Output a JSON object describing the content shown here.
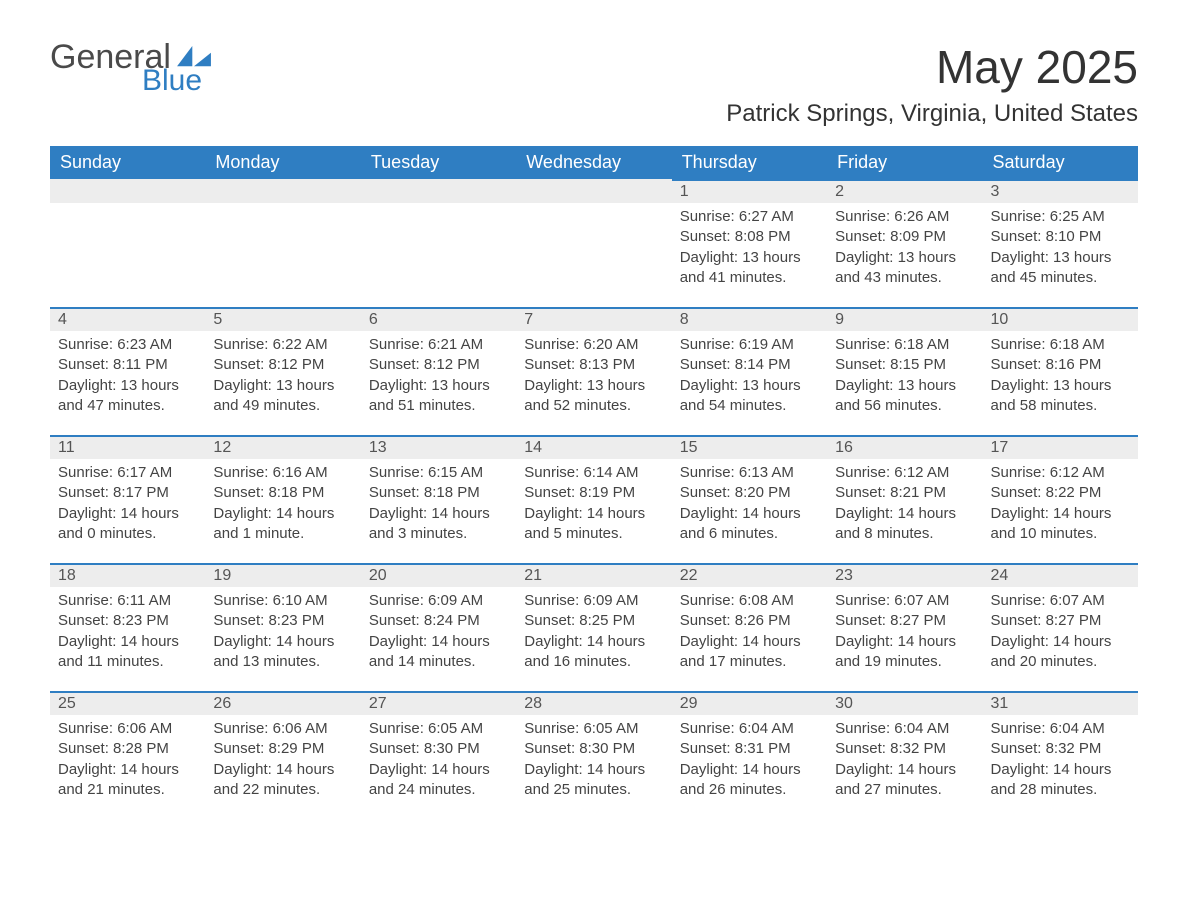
{
  "brand": {
    "word1": "General",
    "word2": "Blue",
    "logo_color": "#2f7ec2"
  },
  "title": "May 2025",
  "subtitle": "Patrick Springs, Virginia, United States",
  "header_bg": "#2f7ec2",
  "header_fg": "#ffffff",
  "daynum_bg": "#ededed",
  "row_accent": "#2f7ec2",
  "text_color": "#444444",
  "weekdays": [
    "Sunday",
    "Monday",
    "Tuesday",
    "Wednesday",
    "Thursday",
    "Friday",
    "Saturday"
  ],
  "weeks": [
    [
      null,
      null,
      null,
      null,
      {
        "n": "1",
        "sr": "6:27 AM",
        "ss": "8:08 PM",
        "dl": "13 hours and 41 minutes."
      },
      {
        "n": "2",
        "sr": "6:26 AM",
        "ss": "8:09 PM",
        "dl": "13 hours and 43 minutes."
      },
      {
        "n": "3",
        "sr": "6:25 AM",
        "ss": "8:10 PM",
        "dl": "13 hours and 45 minutes."
      }
    ],
    [
      {
        "n": "4",
        "sr": "6:23 AM",
        "ss": "8:11 PM",
        "dl": "13 hours and 47 minutes."
      },
      {
        "n": "5",
        "sr": "6:22 AM",
        "ss": "8:12 PM",
        "dl": "13 hours and 49 minutes."
      },
      {
        "n": "6",
        "sr": "6:21 AM",
        "ss": "8:12 PM",
        "dl": "13 hours and 51 minutes."
      },
      {
        "n": "7",
        "sr": "6:20 AM",
        "ss": "8:13 PM",
        "dl": "13 hours and 52 minutes."
      },
      {
        "n": "8",
        "sr": "6:19 AM",
        "ss": "8:14 PM",
        "dl": "13 hours and 54 minutes."
      },
      {
        "n": "9",
        "sr": "6:18 AM",
        "ss": "8:15 PM",
        "dl": "13 hours and 56 minutes."
      },
      {
        "n": "10",
        "sr": "6:18 AM",
        "ss": "8:16 PM",
        "dl": "13 hours and 58 minutes."
      }
    ],
    [
      {
        "n": "11",
        "sr": "6:17 AM",
        "ss": "8:17 PM",
        "dl": "14 hours and 0 minutes."
      },
      {
        "n": "12",
        "sr": "6:16 AM",
        "ss": "8:18 PM",
        "dl": "14 hours and 1 minute."
      },
      {
        "n": "13",
        "sr": "6:15 AM",
        "ss": "8:18 PM",
        "dl": "14 hours and 3 minutes."
      },
      {
        "n": "14",
        "sr": "6:14 AM",
        "ss": "8:19 PM",
        "dl": "14 hours and 5 minutes."
      },
      {
        "n": "15",
        "sr": "6:13 AM",
        "ss": "8:20 PM",
        "dl": "14 hours and 6 minutes."
      },
      {
        "n": "16",
        "sr": "6:12 AM",
        "ss": "8:21 PM",
        "dl": "14 hours and 8 minutes."
      },
      {
        "n": "17",
        "sr": "6:12 AM",
        "ss": "8:22 PM",
        "dl": "14 hours and 10 minutes."
      }
    ],
    [
      {
        "n": "18",
        "sr": "6:11 AM",
        "ss": "8:23 PM",
        "dl": "14 hours and 11 minutes."
      },
      {
        "n": "19",
        "sr": "6:10 AM",
        "ss": "8:23 PM",
        "dl": "14 hours and 13 minutes."
      },
      {
        "n": "20",
        "sr": "6:09 AM",
        "ss": "8:24 PM",
        "dl": "14 hours and 14 minutes."
      },
      {
        "n": "21",
        "sr": "6:09 AM",
        "ss": "8:25 PM",
        "dl": "14 hours and 16 minutes."
      },
      {
        "n": "22",
        "sr": "6:08 AM",
        "ss": "8:26 PM",
        "dl": "14 hours and 17 minutes."
      },
      {
        "n": "23",
        "sr": "6:07 AM",
        "ss": "8:27 PM",
        "dl": "14 hours and 19 minutes."
      },
      {
        "n": "24",
        "sr": "6:07 AM",
        "ss": "8:27 PM",
        "dl": "14 hours and 20 minutes."
      }
    ],
    [
      {
        "n": "25",
        "sr": "6:06 AM",
        "ss": "8:28 PM",
        "dl": "14 hours and 21 minutes."
      },
      {
        "n": "26",
        "sr": "6:06 AM",
        "ss": "8:29 PM",
        "dl": "14 hours and 22 minutes."
      },
      {
        "n": "27",
        "sr": "6:05 AM",
        "ss": "8:30 PM",
        "dl": "14 hours and 24 minutes."
      },
      {
        "n": "28",
        "sr": "6:05 AM",
        "ss": "8:30 PM",
        "dl": "14 hours and 25 minutes."
      },
      {
        "n": "29",
        "sr": "6:04 AM",
        "ss": "8:31 PM",
        "dl": "14 hours and 26 minutes."
      },
      {
        "n": "30",
        "sr": "6:04 AM",
        "ss": "8:32 PM",
        "dl": "14 hours and 27 minutes."
      },
      {
        "n": "31",
        "sr": "6:04 AM",
        "ss": "8:32 PM",
        "dl": "14 hours and 28 minutes."
      }
    ]
  ],
  "labels": {
    "sunrise": "Sunrise:",
    "sunset": "Sunset:",
    "daylight": "Daylight:"
  }
}
